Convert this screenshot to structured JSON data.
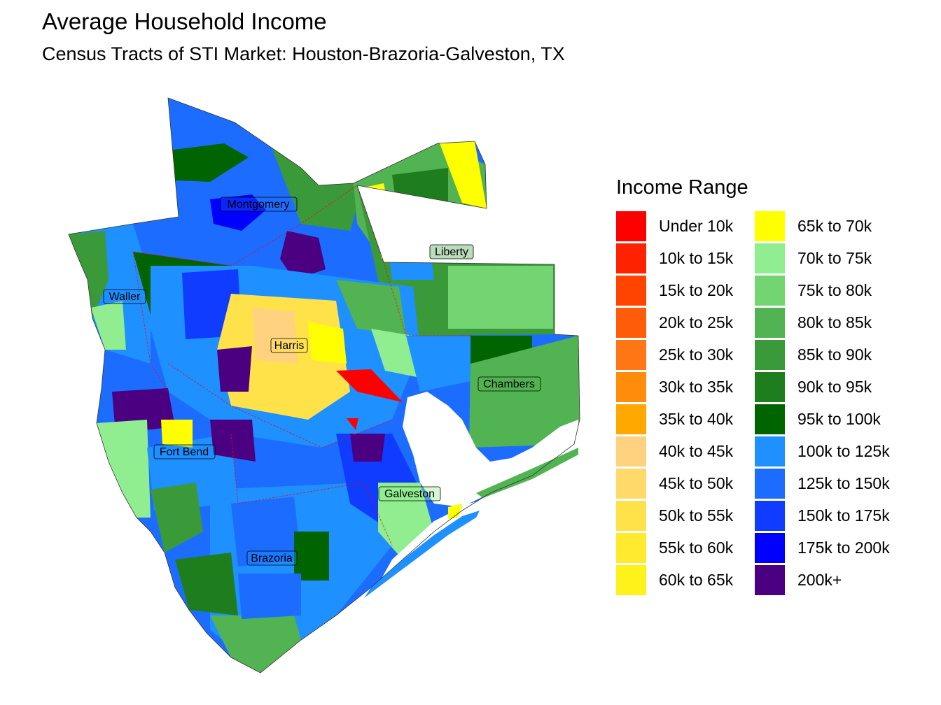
{
  "title": "Average Household Income",
  "subtitle": "Census Tracts of STI Market: Houston-Brazoria-Galveston, TX",
  "legend": {
    "title": "Income Range",
    "items": [
      {
        "label": "Under 10k",
        "color": "#FF0000"
      },
      {
        "label": "10k to 15k",
        "color": "#FF2200"
      },
      {
        "label": "15k to 20k",
        "color": "#FF4400"
      },
      {
        "label": "20k to 25k",
        "color": "#FF5C0A"
      },
      {
        "label": "25k to 30k",
        "color": "#FF7714"
      },
      {
        "label": "30k to 35k",
        "color": "#FF8C0A"
      },
      {
        "label": "35k to 40k",
        "color": "#FFA800"
      },
      {
        "label": "40k to 45k",
        "color": "#FFD27F"
      },
      {
        "label": "45k to 50k",
        "color": "#FFDA6A"
      },
      {
        "label": "50k to 55k",
        "color": "#FFE24A"
      },
      {
        "label": "55k to 60k",
        "color": "#FFEA30"
      },
      {
        "label": "60k to 65k",
        "color": "#FFF21A"
      },
      {
        "label": "65k to 70k",
        "color": "#FFFF00"
      },
      {
        "label": "70k to 75k",
        "color": "#90EE90"
      },
      {
        "label": "75k to 80k",
        "color": "#72D572"
      },
      {
        "label": "80k to 85k",
        "color": "#52B352"
      },
      {
        "label": "85k to 90k",
        "color": "#3A9A3A"
      },
      {
        "label": "90k to 95k",
        "color": "#1E7E1E"
      },
      {
        "label": "95k to 100k",
        "color": "#006400"
      },
      {
        "label": "100k to 125k",
        "color": "#1E90FF"
      },
      {
        "label": "125k to 150k",
        "color": "#1C6DFF"
      },
      {
        "label": "150k to 175k",
        "color": "#0F3CFF"
      },
      {
        "label": "175k to 200k",
        "color": "#0000FF"
      },
      {
        "label": "200k+",
        "color": "#4B0082"
      }
    ]
  },
  "counties": [
    {
      "name": "Montgomery"
    },
    {
      "name": "Liberty"
    },
    {
      "name": "Waller"
    },
    {
      "name": "Harris"
    },
    {
      "name": "Chambers"
    },
    {
      "name": "Fort Bend"
    },
    {
      "name": "Galveston"
    },
    {
      "name": "Brazoria"
    }
  ]
}
